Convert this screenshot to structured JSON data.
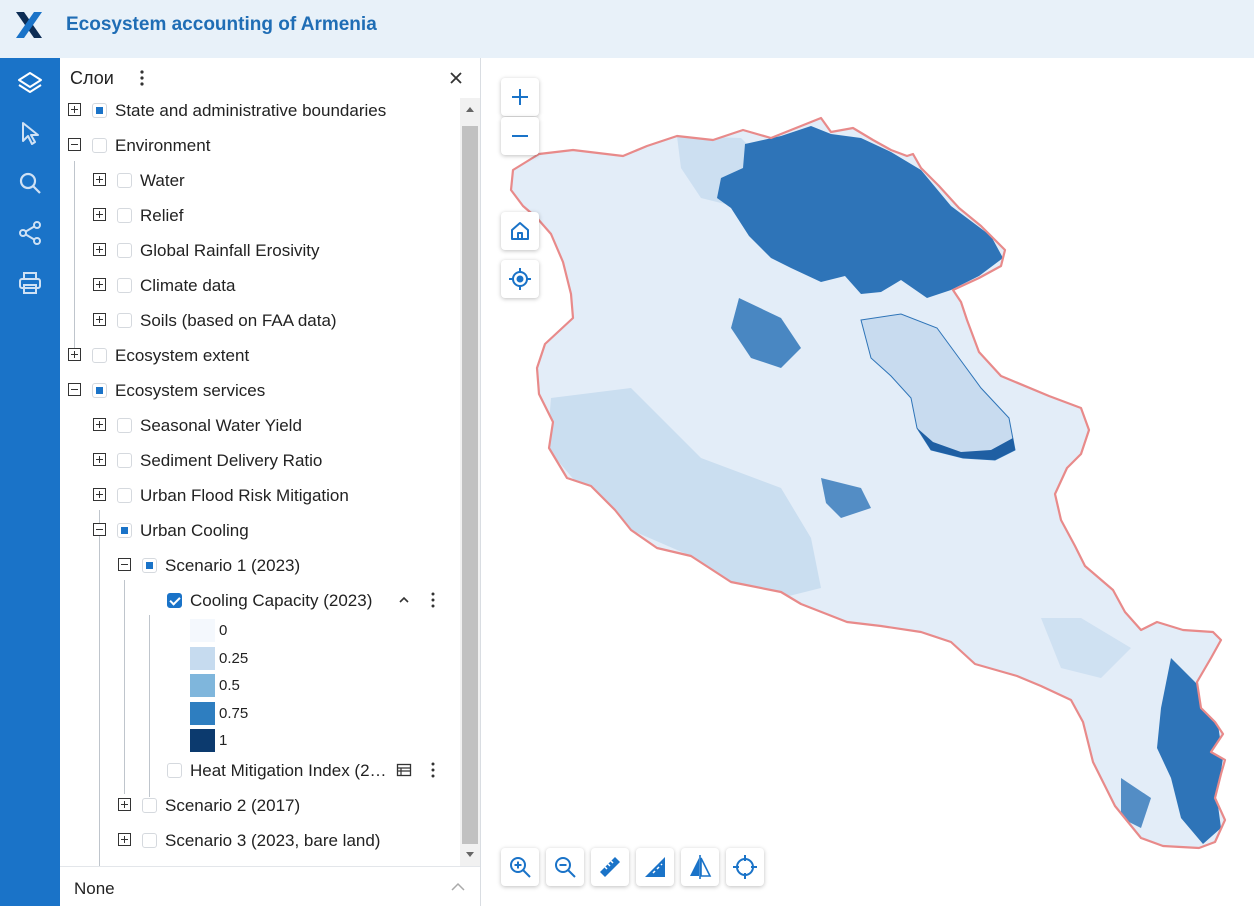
{
  "header": {
    "title": "Ecosystem accounting of Armenia"
  },
  "rail": {
    "icons": [
      "layers-icon",
      "pointer-icon",
      "search-icon",
      "share-icon",
      "print-icon"
    ]
  },
  "panel": {
    "title": "Слои",
    "footer": "None",
    "items": [
      {
        "label": "State and administrative boundaries",
        "state": "partial",
        "expand": "plus"
      },
      {
        "label": "Environment",
        "state": "empty",
        "expand": "minus"
      },
      {
        "label": "Water",
        "state": "empty",
        "expand": "plus"
      },
      {
        "label": "Relief",
        "state": "empty",
        "expand": "plus"
      },
      {
        "label": "Global Rainfall Erosivity",
        "state": "empty",
        "expand": "plus"
      },
      {
        "label": "Climate data",
        "state": "empty",
        "expand": "plus"
      },
      {
        "label": "Soils (based on FAA data)",
        "state": "empty",
        "expand": "plus"
      },
      {
        "label": "Ecosystem extent",
        "state": "empty",
        "expand": "plus"
      },
      {
        "label": "Ecosystem services",
        "state": "partial",
        "expand": "minus"
      },
      {
        "label": "Seasonal Water Yield",
        "state": "empty",
        "expand": "plus"
      },
      {
        "label": "Sediment Delivery Ratio",
        "state": "empty",
        "expand": "plus"
      },
      {
        "label": "Urban Flood Risk Mitigation",
        "state": "empty",
        "expand": "plus"
      },
      {
        "label": "Urban Cooling",
        "state": "partial",
        "expand": "minus"
      },
      {
        "label": "Scenario 1 (2023)",
        "state": "partial",
        "expand": "minus"
      },
      {
        "label": "Cooling Capacity (2023)",
        "state": "checked"
      },
      {
        "label": "Heat Mitigation Index (2…",
        "state": "empty"
      },
      {
        "label": "Scenario 2 (2017)",
        "state": "empty",
        "expand": "plus"
      },
      {
        "label": "Scenario 3 (2023, bare land)",
        "state": "empty",
        "expand": "plus"
      }
    ],
    "legend": [
      {
        "label": "0",
        "color": "#f4f8fd"
      },
      {
        "label": "0.25",
        "color": "#c6dbef"
      },
      {
        "label": "0.5",
        "color": "#7fb6dc"
      },
      {
        "label": "0.75",
        "color": "#2e7ec0"
      },
      {
        "label": "1",
        "color": "#0c3a6e"
      }
    ]
  },
  "map": {
    "colors": {
      "base": "#e3edf8",
      "light": "#c6dbef",
      "dark": "#2e74b8",
      "lake": "#c8dbef",
      "border": "#e88a8a"
    },
    "controls": [
      "zoom-in",
      "zoom-out",
      "home",
      "locate"
    ],
    "toolbar": [
      "zoom-in-tool",
      "zoom-out-tool",
      "measure-distance",
      "measure-area",
      "swipe-compare",
      "coordinates"
    ]
  }
}
